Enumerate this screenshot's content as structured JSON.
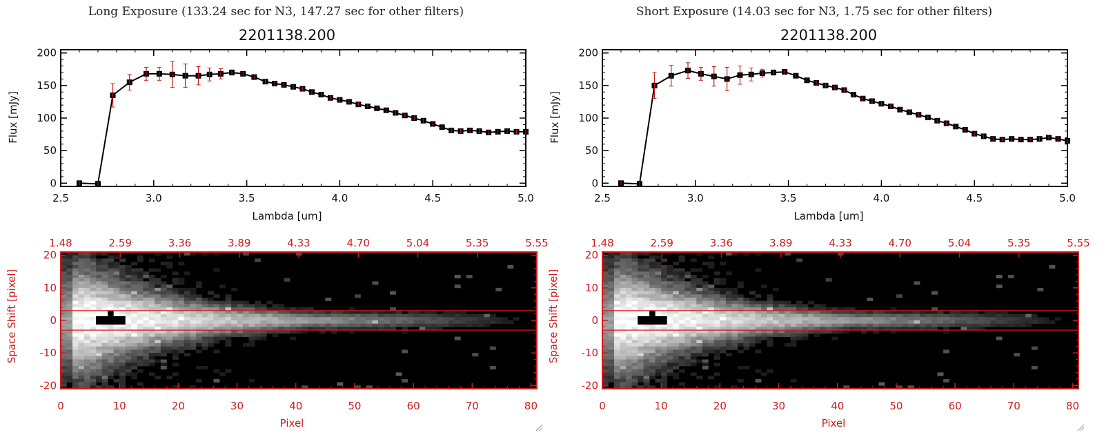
{
  "colors": {
    "red": "#cc1b1b",
    "black": "#000000",
    "white": "#ffffff"
  },
  "icons": [
    "resize-grip-icon"
  ],
  "chart_data": [
    {
      "type": "line",
      "panel_title": "Long Exposure (133.24 sec for N3, 147.27 sec for other filters)",
      "title": "2201138.200",
      "xlabel": "Lambda [um]",
      "ylabel": "Flux [mJy]",
      "xlim": [
        2.5,
        5.0
      ],
      "ylim": [
        -5,
        205
      ],
      "xticks": [
        "2.5",
        "3.0",
        "3.5",
        "4.0",
        "4.5",
        "5.0"
      ],
      "yticks": [
        "0",
        "50",
        "100",
        "150",
        "200"
      ],
      "series": [
        {
          "x": [
            2.6,
            2.7,
            2.78,
            2.87,
            2.96,
            3.03,
            3.1,
            3.17,
            3.24,
            3.3,
            3.36,
            3.42,
            3.48,
            3.54,
            3.6,
            3.65,
            3.7,
            3.75,
            3.8,
            3.85,
            3.9,
            3.95,
            4.0,
            4.05,
            4.1,
            4.15,
            4.2,
            4.25,
            4.3,
            4.35,
            4.4,
            4.45,
            4.5,
            4.55,
            4.6,
            4.65,
            4.7,
            4.75,
            4.8,
            4.85,
            4.9,
            4.95,
            5.0
          ],
          "y": [
            0,
            -1,
            135,
            155,
            168,
            168,
            167,
            165,
            165,
            167,
            168,
            170,
            168,
            163,
            156,
            153,
            151,
            148,
            145,
            140,
            136,
            131,
            128,
            125,
            121,
            118,
            115,
            112,
            108,
            104,
            100,
            96,
            91,
            86,
            81,
            80,
            81,
            80,
            78,
            79,
            80,
            79,
            79
          ],
          "yerr": [
            0,
            0,
            18,
            12,
            10,
            10,
            20,
            18,
            14,
            10,
            8,
            4,
            3,
            3,
            3,
            3,
            3,
            3,
            3,
            3,
            3,
            3,
            3,
            3,
            3,
            3,
            3,
            3,
            3,
            3,
            3,
            3,
            3,
            3,
            3,
            3,
            3,
            3,
            3,
            3,
            3,
            3,
            3
          ]
        }
      ]
    },
    {
      "type": "line",
      "panel_title": "Short Exposure (14.03 sec for N3, 1.75 sec for other filters)",
      "title": "2201138.200",
      "xlabel": "Lambda [um]",
      "ylabel": "Flux [mJy]",
      "xlim": [
        2.5,
        5.0
      ],
      "ylim": [
        -5,
        205
      ],
      "xticks": [
        "2.5",
        "3.0",
        "3.5",
        "4.0",
        "4.5",
        "5.0"
      ],
      "yticks": [
        "0",
        "50",
        "100",
        "150",
        "200"
      ],
      "series": [
        {
          "x": [
            2.6,
            2.7,
            2.78,
            2.87,
            2.96,
            3.03,
            3.1,
            3.17,
            3.24,
            3.3,
            3.36,
            3.42,
            3.48,
            3.54,
            3.6,
            3.65,
            3.7,
            3.75,
            3.8,
            3.85,
            3.9,
            3.95,
            4.0,
            4.05,
            4.1,
            4.15,
            4.2,
            4.25,
            4.3,
            4.35,
            4.4,
            4.45,
            4.5,
            4.55,
            4.6,
            4.65,
            4.7,
            4.75,
            4.8,
            4.85,
            4.9,
            4.95,
            5.0
          ],
          "y": [
            0,
            -1,
            150,
            165,
            173,
            168,
            164,
            160,
            166,
            167,
            169,
            170,
            171,
            165,
            158,
            154,
            150,
            147,
            143,
            136,
            130,
            126,
            122,
            118,
            113,
            109,
            105,
            101,
            96,
            92,
            87,
            82,
            76,
            72,
            68,
            67,
            68,
            67,
            67,
            68,
            70,
            68,
            65
          ],
          "yerr": [
            0,
            0,
            20,
            16,
            12,
            10,
            15,
            18,
            14,
            10,
            6,
            4,
            3,
            3,
            3,
            3,
            3,
            3,
            3,
            3,
            3,
            3,
            3,
            3,
            3,
            3,
            3,
            3,
            3,
            3,
            3,
            3,
            3,
            3,
            3,
            3,
            3,
            3,
            3,
            3,
            3,
            3,
            3
          ]
        }
      ]
    },
    {
      "type": "heatmap",
      "xlabel": "Pixel",
      "ylabel": "Space Shift [pixel]",
      "xlim": [
        0,
        81
      ],
      "ylim": [
        -21,
        21
      ],
      "xticks": [
        "0",
        "10",
        "20",
        "30",
        "40",
        "50",
        "60",
        "70",
        "80"
      ],
      "yticks": [
        "20",
        "10",
        "0",
        "-10",
        "-20"
      ],
      "top_ticks": [
        "1.48",
        "2.59",
        "3.36",
        "3.89",
        "4.33",
        "4.70",
        "5.04",
        "5.35",
        "5.55"
      ],
      "aperture_lines": [
        3,
        -3
      ],
      "colormap": "grayscale"
    },
    {
      "type": "heatmap",
      "xlabel": "Pixel",
      "ylabel": "Space Shift [pixel]",
      "xlim": [
        0,
        81
      ],
      "ylim": [
        -21,
        21
      ],
      "xticks": [
        "0",
        "10",
        "20",
        "30",
        "40",
        "50",
        "60",
        "70",
        "80"
      ],
      "yticks": [
        "20",
        "10",
        "0",
        "-10",
        "-20"
      ],
      "top_ticks": [
        "1.48",
        "2.59",
        "3.36",
        "3.89",
        "4.33",
        "4.70",
        "5.04",
        "5.35",
        "5.55"
      ],
      "aperture_lines": [
        3,
        -3
      ],
      "colormap": "grayscale"
    }
  ]
}
